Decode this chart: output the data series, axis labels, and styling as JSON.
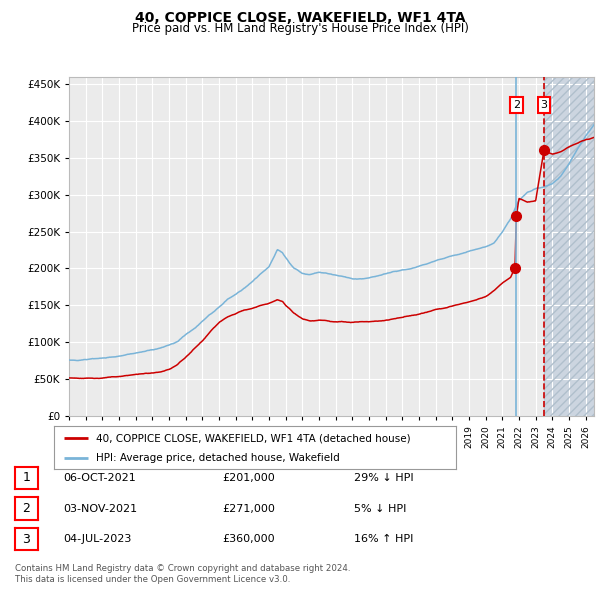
{
  "title": "40, COPPICE CLOSE, WAKEFIELD, WF1 4TA",
  "subtitle": "Price paid vs. HM Land Registry's House Price Index (HPI)",
  "legend_line1": "40, COPPICE CLOSE, WAKEFIELD, WF1 4TA (detached house)",
  "legend_line2": "HPI: Average price, detached house, Wakefield",
  "footer1": "Contains HM Land Registry data © Crown copyright and database right 2024.",
  "footer2": "This data is licensed under the Open Government Licence v3.0.",
  "table": [
    {
      "num": "1",
      "date": "06-OCT-2021",
      "price": "£201,000",
      "change": "29% ↓ HPI"
    },
    {
      "num": "2",
      "date": "03-NOV-2021",
      "price": "£271,000",
      "change": "5% ↓ HPI"
    },
    {
      "num": "3",
      "date": "04-JUL-2023",
      "price": "£360,000",
      "change": "16% ↑ HPI"
    }
  ],
  "sale1_date_num": 2021.76,
  "sale1_price": 201000,
  "sale2_date_num": 2021.84,
  "sale2_price": 271000,
  "sale3_date_num": 2023.5,
  "sale3_price": 360000,
  "vline1_date": 2021.84,
  "vline2_date": 2023.5,
  "hpi_color": "#7ab4d8",
  "price_color": "#cc0000",
  "background_color": "#ffffff",
  "plot_bg_color": "#ebebeb",
  "future_shade_color": "#ccd5e0",
  "grid_color": "#ffffff",
  "ylim_min": 0,
  "ylim_max": 460000,
  "xlim_min": 1995,
  "xlim_max": 2026.5,
  "title_fontsize": 10,
  "subtitle_fontsize": 8.5
}
